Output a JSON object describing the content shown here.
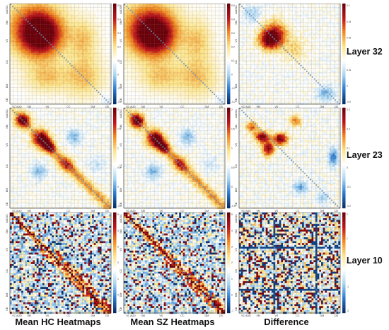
{
  "figure": {
    "columns": [
      "Mean HC Heatmaps",
      "Mean SZ Heatmaps",
      "Difference"
    ],
    "rows": [
      "Layer 32",
      "Layer 23",
      "Layer 10"
    ]
  },
  "chart_data": {
    "type": "heatmap",
    "network_labels": [
      "SC",
      "AUD",
      "SM",
      "VS",
      "CC",
      "DM",
      "CB"
    ],
    "axis_ticks": {
      "x": [
        "SC",
        "AUD",
        "SM",
        "VS",
        "CC",
        "DM",
        "CB"
      ],
      "y": [
        "AUDSC",
        "SM",
        "VS",
        "CC",
        "DM",
        "CB"
      ]
    },
    "colorscale": [
      "#08306b",
      "#2b7bd0",
      "#a9d5f2",
      "#ffffff",
      "#fde58a",
      "#f28a1e",
      "#c0141a",
      "#6b0009"
    ],
    "panels": [
      {
        "row": "Layer 32",
        "column": "Mean HC Heatmaps",
        "colorbar_ticks": [
          "0.5",
          "0.4",
          "0.3",
          "0.2",
          "0.1",
          "0",
          "-0.1",
          "-0.2"
        ]
      },
      {
        "row": "Layer 32",
        "column": "Mean SZ Heatmaps",
        "colorbar_ticks": [
          "0.5",
          "0.4",
          "0.3",
          "0.2",
          "0.1",
          "0",
          "-0.1",
          "-0.2"
        ]
      },
      {
        "row": "Layer 32",
        "column": "Difference",
        "colorbar_ticks": [
          "0.1",
          "0.08",
          "0.06",
          "0.04",
          "0.02",
          "0",
          "-0.02"
        ]
      },
      {
        "row": "Layer 23",
        "column": "Mean HC Heatmaps",
        "colorbar_ticks": [
          "2",
          "1.5",
          "1",
          "0.5",
          "0",
          "-0.5"
        ]
      },
      {
        "row": "Layer 23",
        "column": "Mean SZ Heatmaps",
        "colorbar_ticks": [
          "2",
          "1.5",
          "1",
          "0.5",
          "0",
          "-0.5"
        ]
      },
      {
        "row": "Layer 23",
        "column": "Difference",
        "colorbar_ticks": [
          "0.3",
          "0.2",
          "0.1",
          "0",
          "-0.1",
          "-0.2"
        ]
      },
      {
        "row": "Layer 10",
        "column": "Mean HC Heatmaps",
        "colorbar_ticks": [
          "5",
          "4",
          "3",
          "2",
          "1",
          "0",
          "-1"
        ]
      },
      {
        "row": "Layer 10",
        "column": "Mean SZ Heatmaps",
        "colorbar_ticks": [
          "5",
          "4",
          "3",
          "2",
          "1",
          "0",
          "-1"
        ]
      },
      {
        "row": "Layer 10",
        "column": "Difference",
        "colorbar_ticks": [
          "2",
          "1",
          "0",
          "-1",
          "-2"
        ]
      }
    ]
  }
}
